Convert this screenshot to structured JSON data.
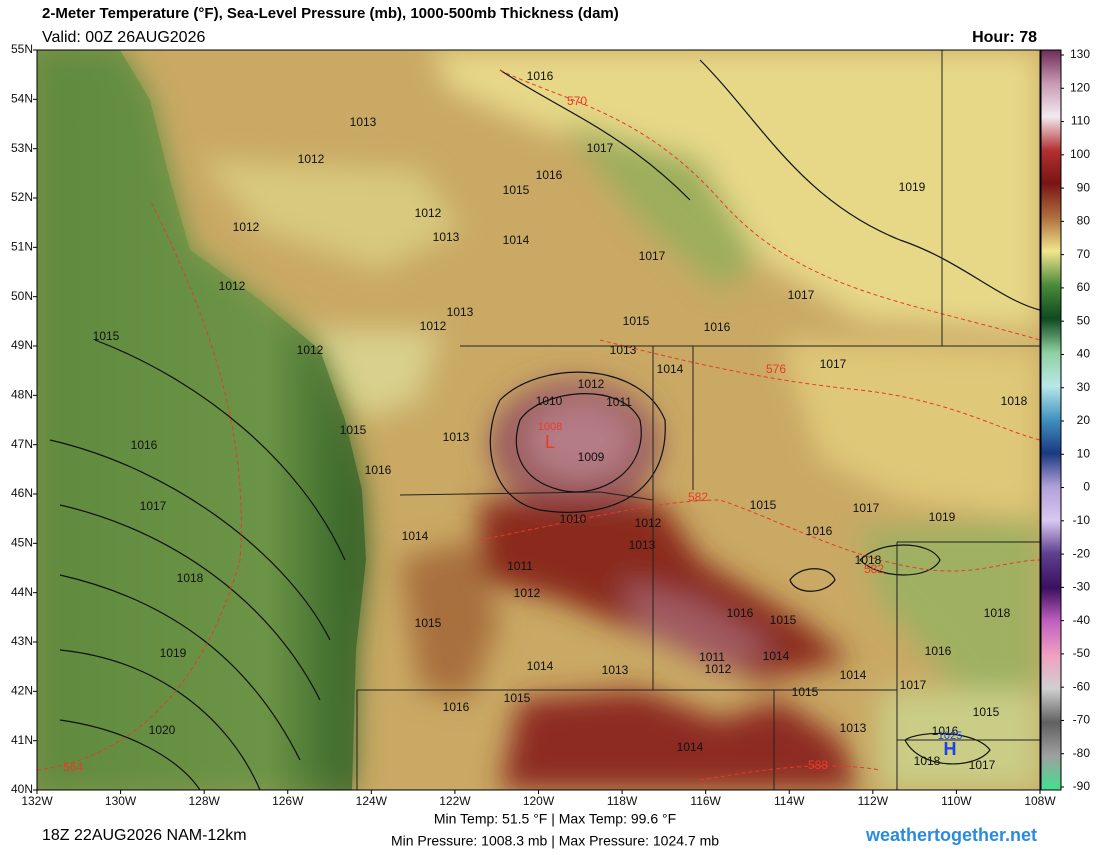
{
  "header": {
    "title": "2-Meter Temperature (°F), Sea-Level Pressure (mb), 1000-500mb Thickness (dam)",
    "valid": "Valid: 00Z 26AUG2026",
    "hour": "Hour: 78"
  },
  "map": {
    "lat_labels": [
      "55N",
      "54N",
      "53N",
      "52N",
      "51N",
      "50N",
      "49N",
      "48N",
      "47N",
      "46N",
      "45N",
      "44N",
      "43N",
      "42N",
      "41N",
      "40N"
    ],
    "lon_labels": [
      "132W",
      "130W",
      "128W",
      "126W",
      "124W",
      "122W",
      "120W",
      "118W",
      "116W",
      "114W",
      "112W",
      "110W",
      "108W"
    ],
    "pressure_labels": [
      "1016",
      "1013",
      "1012",
      "1015",
      "1016",
      "1017",
      "1019",
      "1012",
      "1012",
      "1013",
      "1014",
      "1017",
      "1012",
      "1017",
      "1013",
      "1012",
      "1015",
      "1016",
      "1013",
      "1015",
      "1012",
      "1014",
      "1017",
      "1012",
      "1018",
      "1010",
      "1011",
      "1013",
      "1015",
      "1016",
      "1009",
      "1016",
      "1017",
      "1015",
      "1017",
      "1019",
      "1010",
      "1012",
      "1016",
      "1014",
      "1013",
      "1018",
      "1011",
      "1018",
      "1012",
      "1016",
      "1015",
      "1018",
      "1015",
      "1016",
      "1019",
      "1011",
      "1012",
      "1014",
      "1014",
      "1013",
      "1014",
      "1017",
      "1015",
      "1015",
      "1016",
      "1015",
      "1020",
      "1013",
      "1014",
      "1016",
      "1018",
      "1017"
    ],
    "thickness_labels": [
      "570",
      "576",
      "582",
      "582",
      "588",
      "564"
    ],
    "low": {
      "symbol": "L",
      "value": "1008"
    },
    "high": {
      "symbol": "H",
      "value": "1025"
    }
  },
  "colorbar": {
    "ticks": [
      130,
      120,
      110,
      100,
      90,
      80,
      70,
      60,
      50,
      40,
      30,
      20,
      10,
      0,
      -10,
      -20,
      -30,
      -40,
      -50,
      -60,
      -70,
      -80,
      -90
    ]
  },
  "footer": {
    "run": "18Z 22AUG2026 NAM-12km",
    "temps": "Min Temp:  51.5 °F | Max Temp:  99.6 °F",
    "pressures": "Min Pressure: 1008.3 mb | Max Pressure: 1024.7 mb",
    "site": "weathertogether.net"
  }
}
